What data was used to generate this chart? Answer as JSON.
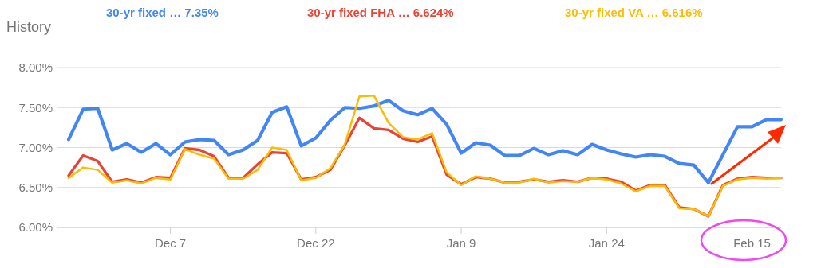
{
  "chart_data": {
    "type": "line",
    "title": "History",
    "categories": [
      null,
      null,
      null,
      null,
      null,
      null,
      null,
      "Dec 7",
      null,
      null,
      null,
      null,
      null,
      null,
      null,
      null,
      null,
      "Dec 22",
      null,
      null,
      null,
      null,
      null,
      null,
      null,
      null,
      null,
      "Jan 9",
      null,
      null,
      null,
      null,
      null,
      null,
      null,
      null,
      null,
      "Jan 24",
      null,
      null,
      null,
      null,
      null,
      null,
      null,
      null,
      null,
      "Feb 15",
      null,
      null
    ],
    "series": [
      {
        "name": "30-yr fixed … 7.35%",
        "color": "#4285f4",
        "values": [
          7.1,
          7.48,
          7.49,
          6.97,
          7.05,
          6.94,
          7.05,
          6.91,
          7.07,
          7.1,
          7.09,
          6.91,
          6.97,
          7.09,
          7.44,
          7.51,
          7.02,
          7.12,
          7.34,
          7.5,
          7.49,
          7.52,
          7.59,
          7.46,
          7.41,
          7.49,
          7.29,
          6.93,
          7.06,
          7.03,
          6.9,
          6.9,
          6.99,
          6.91,
          6.96,
          6.91,
          7.04,
          6.97,
          6.92,
          6.88,
          6.91,
          6.89,
          6.8,
          6.78,
          6.56,
          6.91,
          7.26,
          7.26,
          7.35,
          7.35
        ]
      },
      {
        "name": "30-yr fixed FHA … 6.624%",
        "color": "#ea4335",
        "values": [
          6.65,
          6.9,
          6.83,
          6.57,
          6.6,
          6.56,
          6.63,
          6.62,
          6.99,
          6.97,
          6.89,
          6.62,
          6.62,
          6.79,
          6.94,
          6.93,
          6.6,
          6.63,
          6.72,
          7.03,
          7.37,
          7.24,
          7.22,
          7.11,
          7.07,
          7.14,
          6.66,
          6.54,
          6.63,
          6.61,
          6.56,
          6.57,
          6.6,
          6.57,
          6.59,
          6.57,
          6.62,
          6.61,
          6.57,
          6.46,
          6.53,
          6.53,
          6.25,
          6.23,
          6.14,
          6.53,
          6.61,
          6.63,
          6.62,
          6.62
        ]
      },
      {
        "name": "30-yr fixed VA … 6.616%",
        "color": "#fbbc04",
        "values": [
          6.62,
          6.75,
          6.72,
          6.56,
          6.59,
          6.55,
          6.62,
          6.6,
          6.98,
          6.91,
          6.86,
          6.61,
          6.61,
          6.72,
          7.0,
          6.97,
          6.59,
          6.62,
          6.74,
          7.04,
          7.64,
          7.65,
          7.31,
          7.13,
          7.1,
          7.18,
          6.69,
          6.53,
          6.64,
          6.61,
          6.56,
          6.56,
          6.61,
          6.56,
          6.58,
          6.57,
          6.62,
          6.6,
          6.55,
          6.45,
          6.52,
          6.52,
          6.24,
          6.23,
          6.14,
          6.52,
          6.6,
          6.62,
          6.61,
          6.62
        ]
      }
    ],
    "ylim": [
      6,
      8
    ],
    "yticks": [
      {
        "value": 6,
        "label": "6.00%"
      },
      {
        "value": 6.5,
        "label": "6.50%"
      },
      {
        "value": 7,
        "label": "7.00%"
      },
      {
        "value": 7.5,
        "label": "7.50%"
      },
      {
        "value": 8,
        "label": "8.00%"
      }
    ],
    "grid": "y",
    "legend": "top",
    "marker": "none",
    "line_style": "solid"
  }
}
